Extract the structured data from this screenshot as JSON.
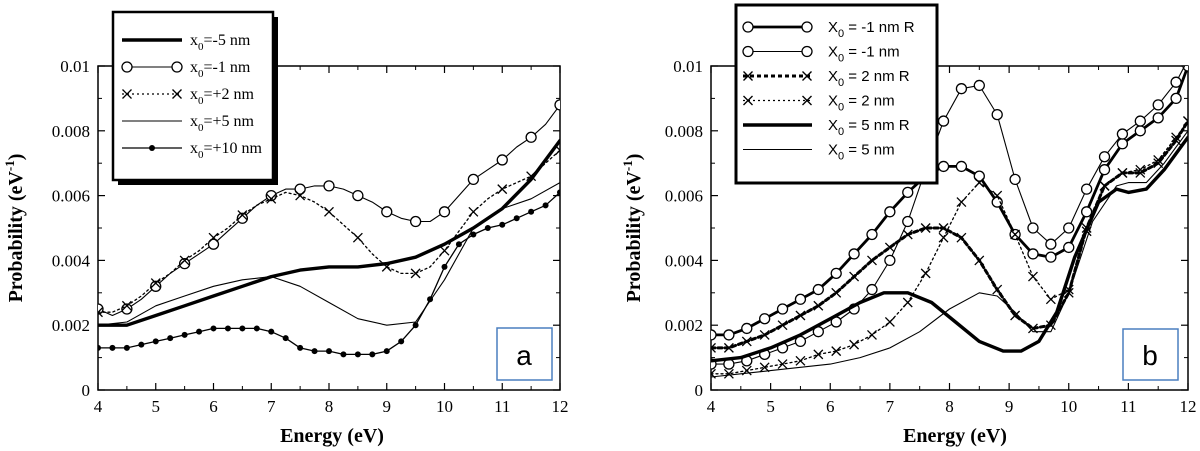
{
  "chart_data": [
    {
      "type": "line",
      "panel_label": "a",
      "xlabel": "Energy  (eV)",
      "ylabel": "Probability  (eV",
      "ylabel_sup": "-1",
      "ylabel_tail": ")",
      "xlim": [
        4,
        12
      ],
      "ylim": [
        0,
        0.01
      ],
      "xticks": [
        "4",
        "5",
        "6",
        "7",
        "8",
        "9",
        "10",
        "11",
        "12"
      ],
      "yticks": [
        "0",
        "0.002",
        "0.004",
        "0.006",
        "0.008",
        "0.01"
      ],
      "legend_position": "top-left",
      "series": [
        {
          "name_main": "x",
          "name_sub": "0",
          "name_tail": "=-5 nm",
          "style": "thick",
          "color": "#000000",
          "x": [
            4.0,
            4.5,
            5.0,
            5.5,
            6.0,
            6.5,
            7.0,
            7.5,
            8.0,
            8.5,
            9.0,
            9.5,
            10.0,
            10.5,
            11.0,
            11.5,
            12.0
          ],
          "y": [
            0.002,
            0.002,
            0.0023,
            0.0026,
            0.0029,
            0.0032,
            0.0035,
            0.0037,
            0.0038,
            0.0038,
            0.0039,
            0.0041,
            0.0045,
            0.005,
            0.0056,
            0.0065,
            0.0077
          ]
        },
        {
          "name_main": "x",
          "name_sub": "0",
          "name_tail": "=-1 nm",
          "style": "circle",
          "color": "#000000",
          "x": [
            4.0,
            4.25,
            4.5,
            4.75,
            5.0,
            5.25,
            5.5,
            5.75,
            6.0,
            6.25,
            6.5,
            6.75,
            7.0,
            7.25,
            7.5,
            7.75,
            8.0,
            8.25,
            8.5,
            8.75,
            9.0,
            9.25,
            9.5,
            9.75,
            10.0,
            10.25,
            10.5,
            10.75,
            11.0,
            11.25,
            11.5,
            11.75,
            12.0
          ],
          "y": [
            0.0025,
            0.0023,
            0.0025,
            0.0028,
            0.0032,
            0.0036,
            0.0039,
            0.0042,
            0.0045,
            0.0049,
            0.0053,
            0.0057,
            0.006,
            0.0062,
            0.0062,
            0.0063,
            0.0063,
            0.0062,
            0.006,
            0.0058,
            0.0055,
            0.0053,
            0.0052,
            0.0052,
            0.0055,
            0.006,
            0.0065,
            0.0068,
            0.0071,
            0.0075,
            0.0078,
            0.0082,
            0.0088
          ],
          "marker_every": 2
        },
        {
          "name_main": "x",
          "name_sub": "0",
          "name_tail": "=+2 nm",
          "style": "cross-dotted",
          "color": "#000000",
          "x": [
            4.0,
            4.25,
            4.5,
            4.75,
            5.0,
            5.25,
            5.5,
            5.75,
            6.0,
            6.25,
            6.5,
            6.75,
            7.0,
            7.25,
            7.5,
            7.75,
            8.0,
            8.25,
            8.5,
            8.75,
            9.0,
            9.25,
            9.5,
            9.75,
            10.0,
            10.25,
            10.5,
            10.75,
            11.0,
            11.25,
            11.5,
            11.75,
            12.0
          ],
          "y": [
            0.0024,
            0.0024,
            0.0026,
            0.0029,
            0.0033,
            0.0036,
            0.004,
            0.0043,
            0.0047,
            0.005,
            0.0054,
            0.0057,
            0.0059,
            0.0061,
            0.006,
            0.0058,
            0.0055,
            0.0051,
            0.0047,
            0.0042,
            0.0038,
            0.0036,
            0.0036,
            0.0038,
            0.0043,
            0.0049,
            0.0055,
            0.0059,
            0.0062,
            0.0064,
            0.0066,
            0.007,
            0.0074
          ],
          "marker_every": 2
        },
        {
          "name_main": "x",
          "name_sub": "0",
          "name_tail": "=+5 nm",
          "style": "thin",
          "color": "#000000",
          "x": [
            4.0,
            4.5,
            5.0,
            5.5,
            6.0,
            6.5,
            7.0,
            7.5,
            8.0,
            8.5,
            9.0,
            9.5,
            10.0,
            10.5,
            11.0,
            11.5,
            12.0
          ],
          "y": [
            0.002,
            0.0021,
            0.0026,
            0.0029,
            0.0032,
            0.0034,
            0.0035,
            0.0032,
            0.0027,
            0.0022,
            0.002,
            0.0021,
            0.0034,
            0.005,
            0.0056,
            0.0059,
            0.0064
          ]
        },
        {
          "name_main": "x",
          "name_sub": "0",
          "name_tail": "=+10 nm",
          "style": "dot",
          "color": "#000000",
          "x": [
            4.0,
            4.25,
            4.5,
            4.75,
            5.0,
            5.25,
            5.5,
            5.75,
            6.0,
            6.25,
            6.5,
            6.75,
            7.0,
            7.25,
            7.5,
            7.75,
            8.0,
            8.25,
            8.5,
            8.75,
            9.0,
            9.25,
            9.5,
            9.75,
            10.0,
            10.25,
            10.5,
            10.75,
            11.0,
            11.25,
            11.5,
            11.75,
            12.0
          ],
          "y": [
            0.0013,
            0.0013,
            0.0013,
            0.0014,
            0.0015,
            0.0016,
            0.0017,
            0.0018,
            0.0019,
            0.0019,
            0.0019,
            0.0019,
            0.0018,
            0.0016,
            0.0013,
            0.0012,
            0.0012,
            0.0011,
            0.0011,
            0.0011,
            0.0012,
            0.0015,
            0.002,
            0.0028,
            0.0038,
            0.0045,
            0.0048,
            0.005,
            0.0051,
            0.0053,
            0.0055,
            0.0057,
            0.0061
          ],
          "marker_every": 1
        }
      ]
    },
    {
      "type": "line",
      "panel_label": "b",
      "xlabel": "Energy  (eV)",
      "ylabel": "Probability  (eV",
      "ylabel_sup": "-1",
      "ylabel_tail": ")",
      "xlim": [
        4,
        12
      ],
      "ylim": [
        0,
        0.01
      ],
      "xticks": [
        "4",
        "5",
        "6",
        "7",
        "8",
        "9",
        "10",
        "11",
        "12"
      ],
      "yticks": [
        "0",
        "0.002",
        "0.004",
        "0.006",
        "0.008",
        "0.01"
      ],
      "legend_position": "top-left",
      "series": [
        {
          "name_main": "X",
          "name_sub": "0",
          "name_tail": " = -1 nm R",
          "style": "circle-thick",
          "color": "#000000",
          "x": [
            4.0,
            4.3,
            4.6,
            4.9,
            5.2,
            5.5,
            5.8,
            6.1,
            6.4,
            6.7,
            7.0,
            7.3,
            7.6,
            7.9,
            8.2,
            8.5,
            8.8,
            9.1,
            9.4,
            9.7,
            10.0,
            10.3,
            10.6,
            10.9,
            11.2,
            11.5,
            11.8,
            12.0
          ],
          "y": [
            0.0017,
            0.0017,
            0.0019,
            0.0022,
            0.0025,
            0.0028,
            0.0031,
            0.0036,
            0.0042,
            0.0048,
            0.0055,
            0.0061,
            0.0066,
            0.0069,
            0.0069,
            0.0066,
            0.0058,
            0.0048,
            0.0042,
            0.0041,
            0.0044,
            0.0055,
            0.0068,
            0.0076,
            0.008,
            0.0084,
            0.009,
            0.01
          ],
          "marker_every": 1
        },
        {
          "name_main": "X",
          "name_sub": "0",
          "name_tail": " = -1 nm",
          "style": "circle",
          "color": "#000000",
          "x": [
            4.0,
            4.3,
            4.6,
            4.9,
            5.2,
            5.5,
            5.8,
            6.1,
            6.4,
            6.7,
            7.0,
            7.3,
            7.6,
            7.9,
            8.2,
            8.5,
            8.8,
            9.1,
            9.4,
            9.7,
            10.0,
            10.3,
            10.6,
            10.9,
            11.2,
            11.5,
            11.8,
            12.0
          ],
          "y": [
            0.0008,
            0.0008,
            0.0009,
            0.0011,
            0.0013,
            0.0015,
            0.0018,
            0.0021,
            0.0025,
            0.0031,
            0.004,
            0.0052,
            0.0068,
            0.0083,
            0.0093,
            0.0094,
            0.0085,
            0.0065,
            0.005,
            0.0045,
            0.005,
            0.0062,
            0.0072,
            0.0079,
            0.0083,
            0.0088,
            0.0095,
            0.0102
          ],
          "marker_every": 1
        },
        {
          "name_main": "X",
          "name_sub": "0",
          "name_tail": " =  2 nm R",
          "style": "cross-thickdash",
          "color": "#000000",
          "x": [
            4.0,
            4.3,
            4.6,
            4.9,
            5.2,
            5.5,
            5.8,
            6.1,
            6.4,
            6.7,
            7.0,
            7.3,
            7.6,
            7.9,
            8.2,
            8.5,
            8.8,
            9.1,
            9.4,
            9.7,
            10.0,
            10.3,
            10.6,
            10.9,
            11.2,
            11.5,
            11.8,
            12.0
          ],
          "y": [
            0.0013,
            0.0013,
            0.0015,
            0.0017,
            0.002,
            0.0023,
            0.0026,
            0.003,
            0.0035,
            0.004,
            0.0044,
            0.0048,
            0.005,
            0.005,
            0.0047,
            0.004,
            0.0031,
            0.0023,
            0.0019,
            0.002,
            0.003,
            0.005,
            0.0063,
            0.0067,
            0.0067,
            0.007,
            0.0077,
            0.0083
          ],
          "marker_every": 1
        },
        {
          "name_main": "X",
          "name_sub": "0",
          "name_tail": " =  2 nm",
          "style": "cross-dotted",
          "color": "#000000",
          "x": [
            4.0,
            4.3,
            4.6,
            4.9,
            5.2,
            5.5,
            5.8,
            6.1,
            6.4,
            6.7,
            7.0,
            7.3,
            7.6,
            7.9,
            8.2,
            8.5,
            8.8,
            9.1,
            9.4,
            9.7,
            10.0,
            10.3,
            10.6,
            10.9,
            11.2,
            11.5,
            11.8,
            12.0
          ],
          "y": [
            0.0005,
            0.0005,
            0.0006,
            0.0007,
            0.0008,
            0.0009,
            0.0011,
            0.0012,
            0.0014,
            0.0017,
            0.0021,
            0.0027,
            0.0036,
            0.0047,
            0.0058,
            0.0064,
            0.006,
            0.0048,
            0.0035,
            0.0028,
            0.0031,
            0.0049,
            0.0063,
            0.0067,
            0.0068,
            0.0071,
            0.0078,
            0.0083
          ],
          "marker_every": 1
        },
        {
          "name_main": "X",
          "name_sub": "0",
          "name_tail": " =  5 nm R",
          "style": "thick",
          "color": "#000000",
          "x": [
            4.0,
            4.5,
            5.0,
            5.5,
            6.0,
            6.5,
            6.9,
            7.3,
            7.7,
            8.1,
            8.5,
            8.9,
            9.2,
            9.5,
            9.8,
            10.1,
            10.5,
            10.8,
            11.0,
            11.3,
            11.6,
            12.0
          ],
          "y": [
            0.0009,
            0.001,
            0.0013,
            0.0017,
            0.0022,
            0.0027,
            0.003,
            0.003,
            0.0027,
            0.0021,
            0.0015,
            0.0012,
            0.0012,
            0.0015,
            0.0024,
            0.0041,
            0.0058,
            0.0062,
            0.0061,
            0.0062,
            0.0068,
            0.0078
          ]
        },
        {
          "name_main": "X",
          "name_sub": "0",
          "name_tail": " =  5 nm",
          "style": "thin",
          "color": "#000000",
          "x": [
            4.0,
            4.5,
            5.0,
            5.5,
            6.0,
            6.5,
            7.0,
            7.5,
            8.0,
            8.5,
            8.8,
            9.1,
            9.4,
            9.7,
            10.0,
            10.4,
            10.8,
            11.0,
            11.3,
            11.6,
            12.0
          ],
          "y": [
            0.0004,
            0.0005,
            0.0006,
            0.0007,
            0.0008,
            0.001,
            0.0013,
            0.0018,
            0.0025,
            0.003,
            0.0029,
            0.0024,
            0.0018,
            0.0018,
            0.003,
            0.0052,
            0.0063,
            0.0064,
            0.0064,
            0.007,
            0.008
          ]
        }
      ]
    }
  ]
}
